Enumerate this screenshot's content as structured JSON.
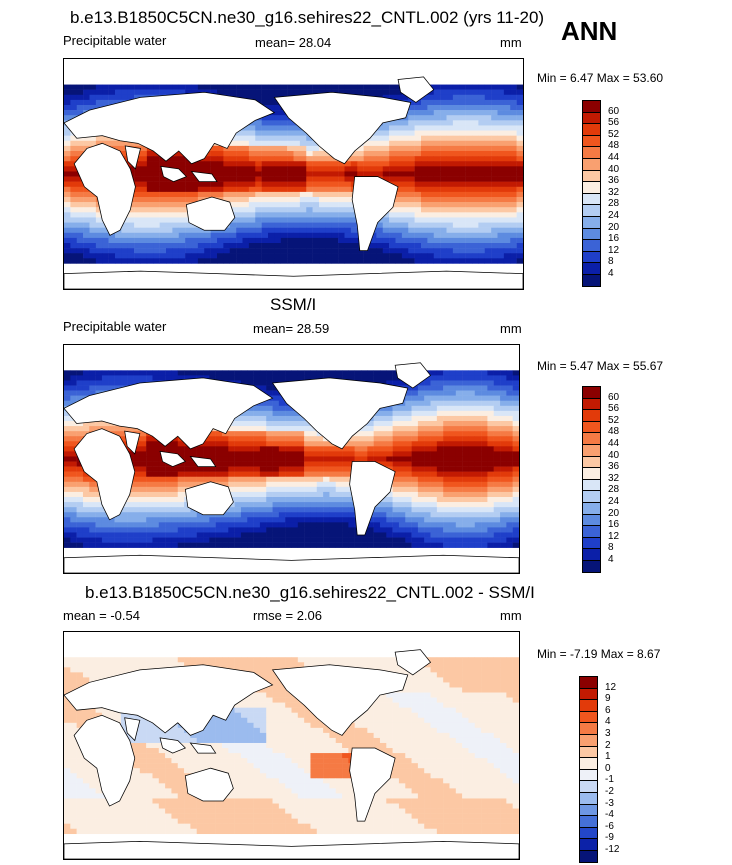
{
  "header": {
    "season": "ANN"
  },
  "panels": [
    {
      "id": "model",
      "title": "b.e13.B1850C5CN.ne30_g16.sehires22_CNTL.002 (yrs 11-20)",
      "left_label": "Precipitable water",
      "stat_label": "mean=  28.04",
      "units": "mm",
      "minmax": "Min =  6.47 Max =  53.60",
      "colorbar": {
        "labels": [
          "60",
          "56",
          "52",
          "48",
          "44",
          "40",
          "36",
          "32",
          "28",
          "24",
          "20",
          "16",
          "12",
          "8",
          "4"
        ],
        "colors": [
          "#8b0000",
          "#c21a02",
          "#e23a0a",
          "#f0561e",
          "#f57a44",
          "#f9a070",
          "#fcc8a4",
          "#fbeee2",
          "#d9e6f7",
          "#b3cdf2",
          "#86aeea",
          "#5d8be0",
          "#3b63d6",
          "#1f3fc9",
          "#0b1fa8",
          "#061478"
        ]
      }
    },
    {
      "id": "obs",
      "title": "SSM/I",
      "left_label": "Precipitable water",
      "stat_label": "mean=  28.59",
      "units": "mm",
      "minmax": "Min =  5.47 Max =  55.67",
      "colorbar": {
        "labels": [
          "60",
          "56",
          "52",
          "48",
          "44",
          "40",
          "36",
          "32",
          "28",
          "24",
          "20",
          "16",
          "12",
          "8",
          "4"
        ],
        "colors": [
          "#8b0000",
          "#c21a02",
          "#e23a0a",
          "#f0561e",
          "#f57a44",
          "#f9a070",
          "#fcc8a4",
          "#fbeee2",
          "#d9e6f7",
          "#b3cdf2",
          "#86aeea",
          "#5d8be0",
          "#3b63d6",
          "#1f3fc9",
          "#0b1fa8",
          "#061478"
        ]
      }
    },
    {
      "id": "diff",
      "title": "b.e13.B1850C5CN.ne30_g16.sehires22_CNTL.002 - SSM/I",
      "left_label": "mean =  -0.54",
      "stat_label": "rmse =   2.06",
      "units": "mm",
      "minmax": "Min =  -7.19 Max =   8.67",
      "colorbar": {
        "labels": [
          "12",
          "9",
          "6",
          "4",
          "3",
          "2",
          "1",
          "0",
          "-1",
          "-2",
          "-3",
          "-4",
          "-6",
          "-9",
          "-12"
        ],
        "colors": [
          "#8b0000",
          "#c21a02",
          "#e23a0a",
          "#f0561e",
          "#f57a44",
          "#f9a070",
          "#fcc8a4",
          "#fbeee2",
          "#eef1f8",
          "#c9d9f4",
          "#9bbbee",
          "#6e97e3",
          "#4570d8",
          "#2347c9",
          "#0c22a8",
          "#061478"
        ]
      }
    }
  ]
}
